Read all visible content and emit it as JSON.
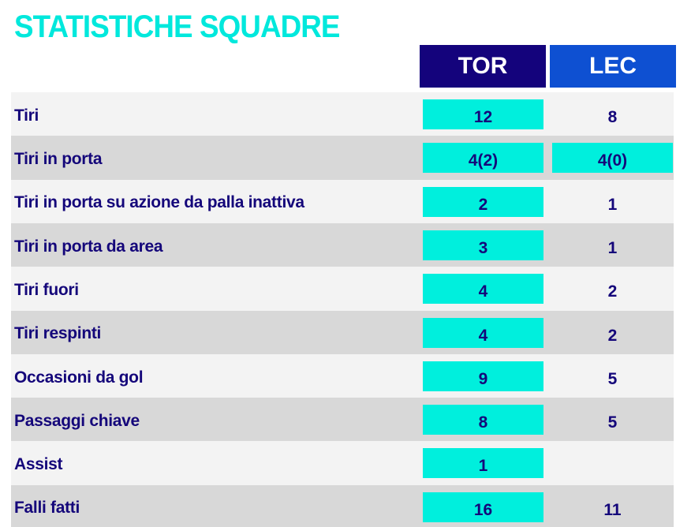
{
  "title": "STATISTICHE SQUADRE",
  "teams": {
    "home": "TOR",
    "away": "LEC"
  },
  "colors": {
    "accent": "#00efdd",
    "home": "#14037c",
    "away": "#0e50d2",
    "text": "#14067a"
  },
  "rows": [
    {
      "label": "Tiri",
      "home": "12",
      "away": "8",
      "home_hl": true,
      "away_hl": false
    },
    {
      "label": "Tiri in porta",
      "home": "4(2)",
      "away": "4(0)",
      "home_hl": true,
      "away_hl": true
    },
    {
      "label": "Tiri in porta su azione da palla inattiva",
      "home": "2",
      "away": "1",
      "home_hl": true,
      "away_hl": false
    },
    {
      "label": "Tiri in porta da area",
      "home": "3",
      "away": "1",
      "home_hl": true,
      "away_hl": false
    },
    {
      "label": "Tiri fuori",
      "home": "4",
      "away": "2",
      "home_hl": true,
      "away_hl": false
    },
    {
      "label": "Tiri respinti",
      "home": "4",
      "away": "2",
      "home_hl": true,
      "away_hl": false
    },
    {
      "label": "Occasioni da gol",
      "home": "9",
      "away": "5",
      "home_hl": true,
      "away_hl": false
    },
    {
      "label": "Passaggi chiave",
      "home": "8",
      "away": "5",
      "home_hl": true,
      "away_hl": false
    },
    {
      "label": "Assist",
      "home": "1",
      "away": "",
      "home_hl": true,
      "away_hl": false
    },
    {
      "label": "Falli fatti",
      "home": "16",
      "away": "11",
      "home_hl": true,
      "away_hl": false
    }
  ]
}
